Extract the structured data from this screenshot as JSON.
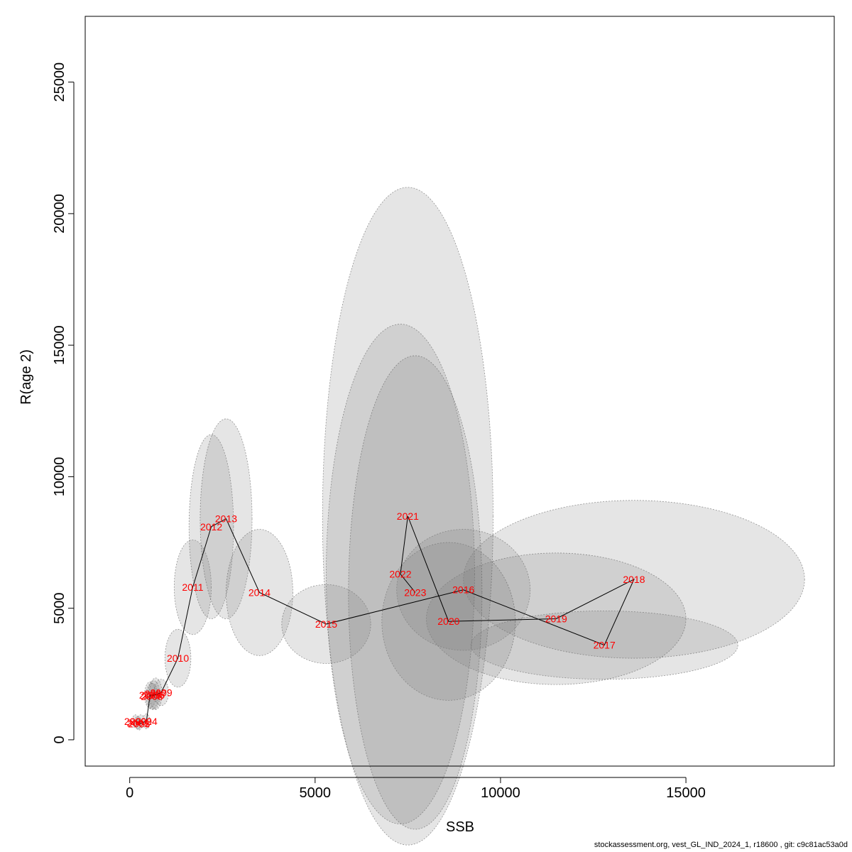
{
  "chart_data": {
    "type": "scatter",
    "title": "",
    "xlabel": "SSB",
    "ylabel": "R(age 2)",
    "xlim": [
      -1200,
      19000
    ],
    "ylim": [
      -1000,
      27500
    ],
    "x_ticks": [
      0,
      5000,
      10000,
      15000
    ],
    "y_ticks": [
      0,
      5000,
      10000,
      15000,
      20000,
      25000
    ],
    "grid": false,
    "legend": "none",
    "point_label_color": "#ff0000",
    "ellipse_fill": "#7f7f7f",
    "points": [
      {
        "year": "2000",
        "ssb": 150,
        "r": 700,
        "sx": 80,
        "ry": 250
      },
      {
        "year": "2001",
        "ssb": 220,
        "r": 650,
        "sx": 80,
        "ry": 250
      },
      {
        "year": "2002",
        "ssb": 300,
        "r": 700,
        "sx": 90,
        "ry": 250
      },
      {
        "year": "2003",
        "ssb": 250,
        "r": 600,
        "sx": 80,
        "ry": 230
      },
      {
        "year": "2004",
        "ssb": 450,
        "r": 700,
        "sx": 100,
        "ry": 280
      },
      {
        "year": "2005",
        "ssb": 550,
        "r": 1700,
        "sx": 150,
        "ry": 500
      },
      {
        "year": "2006",
        "ssb": 650,
        "r": 1700,
        "sx": 160,
        "ry": 550
      },
      {
        "year": "2007",
        "ssb": 700,
        "r": 1750,
        "sx": 170,
        "ry": 600
      },
      {
        "year": "2008",
        "ssb": 600,
        "r": 1650,
        "sx": 160,
        "ry": 500
      },
      {
        "year": "2009",
        "ssb": 850,
        "r": 1800,
        "sx": 200,
        "ry": 500
      },
      {
        "year": "2010",
        "ssb": 1300,
        "r": 3100,
        "sx": 350,
        "ry": 1100
      },
      {
        "year": "2011",
        "ssb": 1700,
        "r": 5800,
        "sx": 500,
        "ry": 1800
      },
      {
        "year": "2012",
        "ssb": 2200,
        "r": 8100,
        "sx": 600,
        "ry": 3500
      },
      {
        "year": "2013",
        "ssb": 2600,
        "r": 8400,
        "sx": 700,
        "ry": 3800
      },
      {
        "year": "2014",
        "ssb": 3500,
        "r": 5600,
        "sx": 900,
        "ry": 2400
      },
      {
        "year": "2015",
        "ssb": 5300,
        "r": 4400,
        "sx": 1200,
        "ry": 1500
      },
      {
        "year": "2016",
        "ssb": 9000,
        "r": 5700,
        "sx": 1800,
        "ry": 2300
      },
      {
        "year": "2017",
        "ssb": 12800,
        "r": 3600,
        "sx": 3600,
        "ry": 1300
      },
      {
        "year": "2018",
        "ssb": 13600,
        "r": 6100,
        "sx": 4600,
        "ry": 3000
      },
      {
        "year": "2019",
        "ssb": 11500,
        "r": 4600,
        "sx": 3500,
        "ry": 2500
      },
      {
        "year": "2020",
        "ssb": 8600,
        "r": 4500,
        "sx": 1800,
        "ry": 3000
      },
      {
        "year": "2021",
        "ssb": 7500,
        "r": 8500,
        "sx": 2300,
        "ry": 12500
      },
      {
        "year": "2022",
        "ssb": 7300,
        "r": 6300,
        "sx": 2000,
        "ry": 9500
      },
      {
        "year": "2023",
        "ssb": 7700,
        "r": 5600,
        "sx": 1800,
        "ry": 9000
      }
    ]
  },
  "footer": "stockassessment.org, vest_GL_IND_2024_1, r18600 , git: c9c81ac53a0d"
}
